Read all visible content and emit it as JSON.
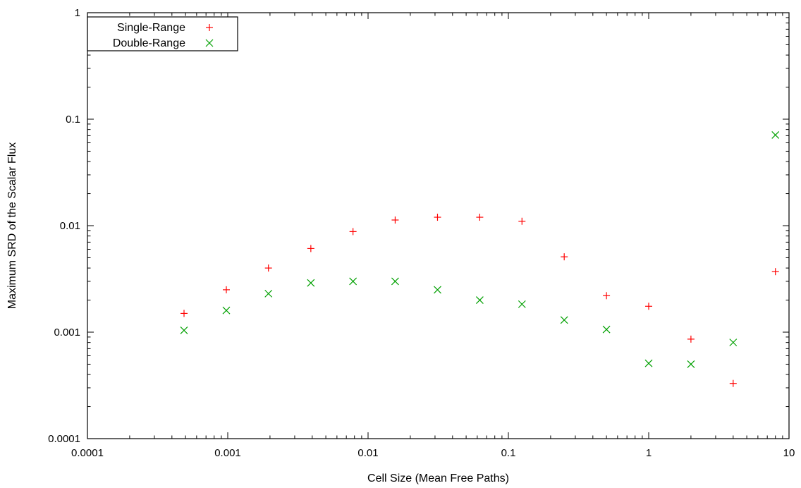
{
  "chart_data": {
    "type": "scatter",
    "title": "",
    "xlabel": "Cell Size (Mean Free Paths)",
    "ylabel": "Maximum SRD of the Scalar Flux",
    "xscale": "log",
    "yscale": "log",
    "xlim": [
      0.0001,
      10
    ],
    "ylim": [
      0.0001,
      1
    ],
    "xticks": [
      0.0001,
      0.001,
      0.01,
      0.1,
      1,
      10
    ],
    "xtick_labels": [
      "0.0001",
      "0.001",
      "0.01",
      "0.1",
      "1",
      "10"
    ],
    "yticks": [
      0.0001,
      0.001,
      0.01,
      0.1,
      1
    ],
    "ytick_labels": [
      "0.0001",
      "0.001",
      "0.01",
      "0.1",
      "1"
    ],
    "grid": false,
    "legend_position": "top-left",
    "series": [
      {
        "name": "Single-Range",
        "marker": "plus",
        "color": "#ff0000",
        "x": [
          0.000488,
          0.000977,
          0.00195,
          0.00391,
          0.00781,
          0.0156,
          0.03125,
          0.0625,
          0.125,
          0.25,
          0.5,
          1,
          2,
          4,
          8
        ],
        "y": [
          0.0015,
          0.0025,
          0.004,
          0.0061,
          0.0088,
          0.0113,
          0.012,
          0.012,
          0.011,
          0.0051,
          0.0022,
          0.00175,
          0.00086,
          0.00033,
          0.0037
        ]
      },
      {
        "name": "Double-Range",
        "marker": "cross",
        "color": "#00a000",
        "x": [
          0.000488,
          0.000977,
          0.00195,
          0.00391,
          0.00781,
          0.0156,
          0.03125,
          0.0625,
          0.125,
          0.25,
          0.5,
          1,
          2,
          4,
          8
        ],
        "y": [
          0.00104,
          0.0016,
          0.0023,
          0.0029,
          0.003,
          0.003,
          0.0025,
          0.002,
          0.00183,
          0.0013,
          0.00106,
          0.00051,
          0.0005,
          0.0008,
          0.071
        ]
      }
    ]
  }
}
